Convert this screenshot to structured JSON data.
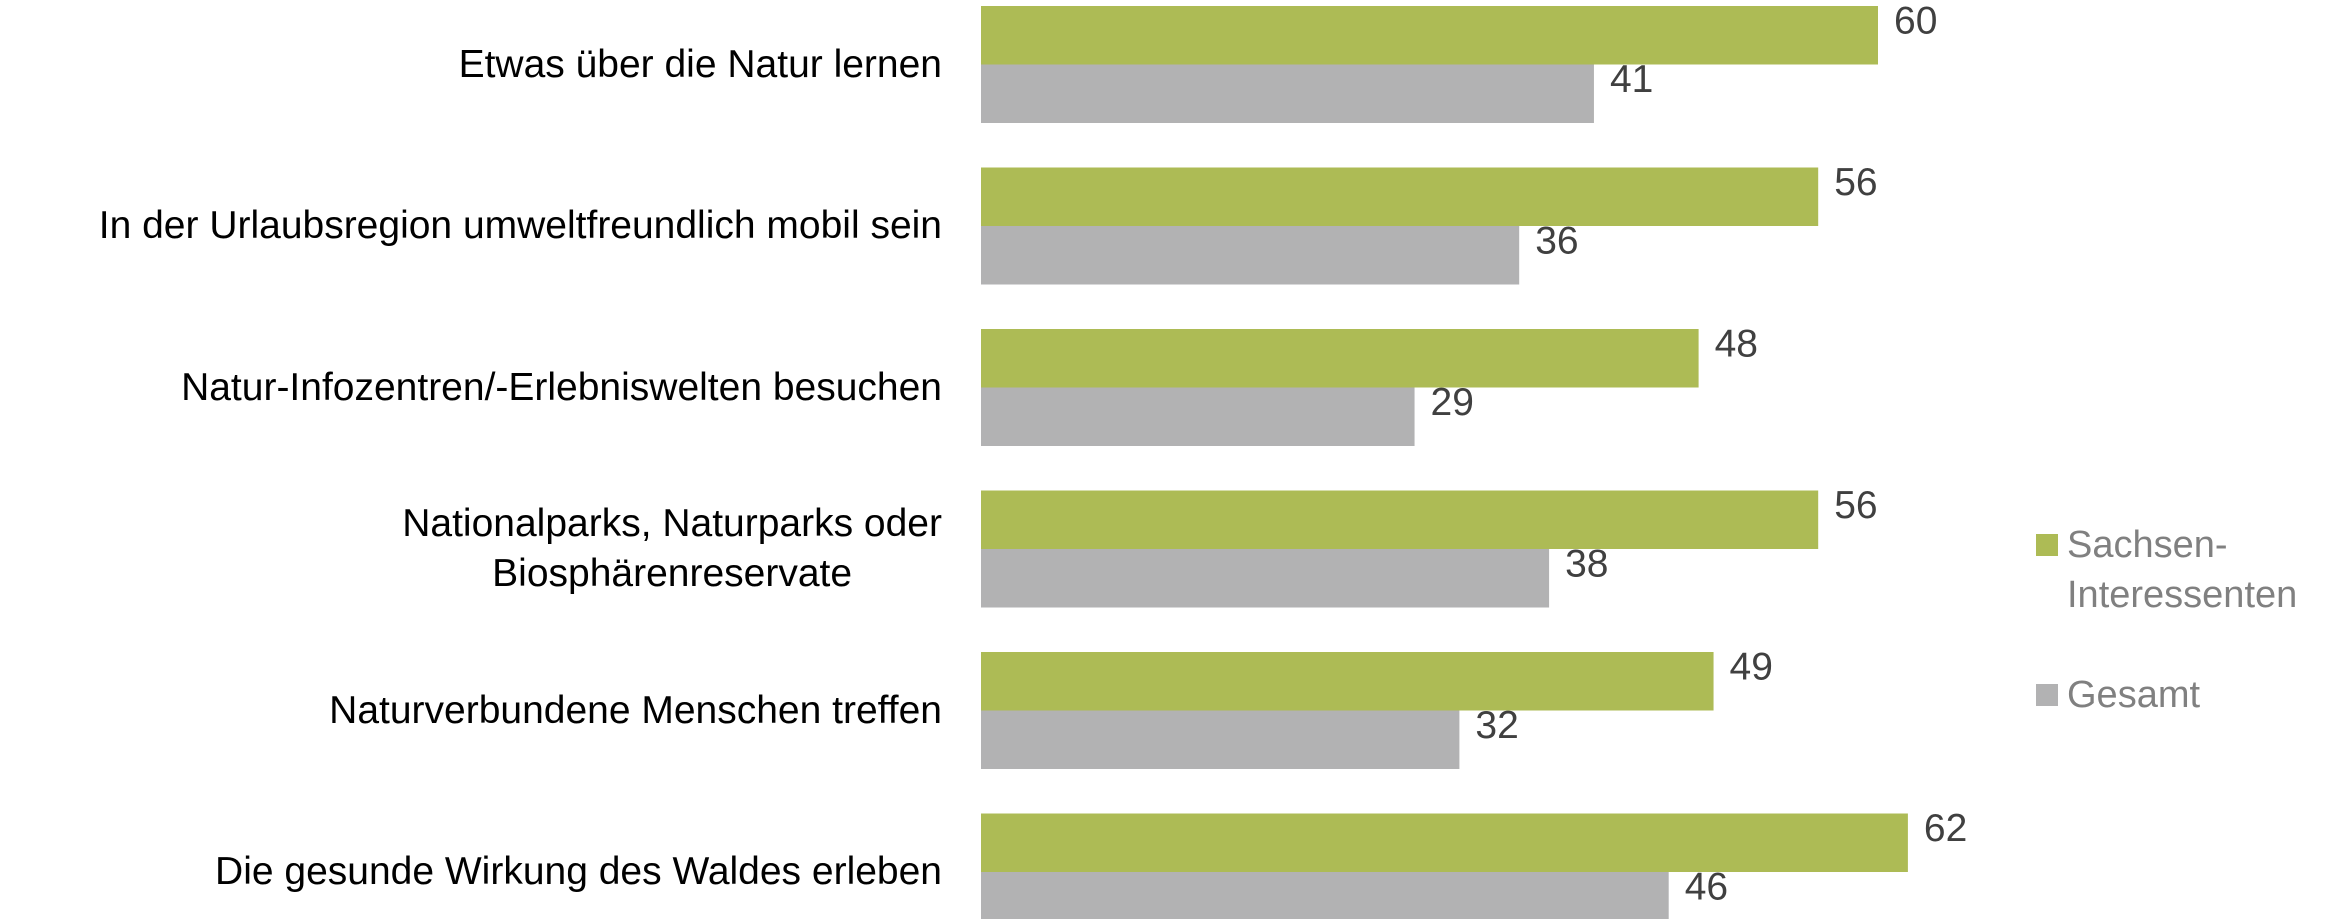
{
  "chart_data": {
    "type": "bar",
    "orientation": "horizontal",
    "categories": [
      "Etwas über die Natur lernen",
      "In der Urlaubsregion umweltfreundlich mobil sein",
      "Natur-Infozentren/-Erlebniswelten besuchen",
      "Nationalparks, Naturparks oder\nBiosphärenreservate",
      "Naturverbundene Menschen treffen",
      "Die gesunde Wirkung des Waldes erleben"
    ],
    "series": [
      {
        "name": "Sachsen-\nInteressenten",
        "color": "#adbb55",
        "values": [
          60,
          56,
          48,
          56,
          49,
          62
        ]
      },
      {
        "name": "Gesamt",
        "color": "#b2b2b3",
        "values": [
          41,
          36,
          29,
          38,
          32,
          46
        ]
      }
    ],
    "xlim": [
      0,
      100
    ],
    "legend": "right"
  }
}
